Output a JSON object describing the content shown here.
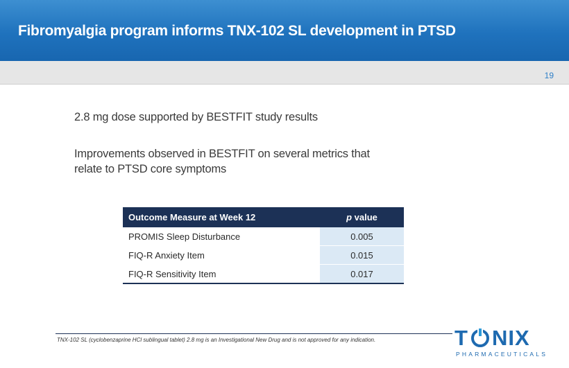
{
  "header": {
    "title": "Fibromyalgia program informs TNX-102 SL development in PTSD"
  },
  "page_number": "19",
  "bullets": [
    {
      "text": "2.8 mg dose supported by BESTFIT study results"
    },
    {
      "line1": "Improvements observed in BESTFIT on several metrics that",
      "line2": "relate to PTSD core symptoms"
    }
  ],
  "table": {
    "header_measure": "Outcome Measure at Week 12",
    "header_p": "p",
    "header_value": " value",
    "rows": [
      {
        "measure": "PROMIS Sleep Disturbance",
        "value": "0.005"
      },
      {
        "measure": "FIQ-R Anxiety Item",
        "value": "0.015"
      },
      {
        "measure": "FIQ-R Sensitivity Item",
        "value": "0.017"
      }
    ]
  },
  "footnote": "TNX-102 SL (cyclobenzaprine HCl sublingual tablet) 2.8 mg is an Investigational New Drug and is not approved for any indication.",
  "logo": {
    "t": "T",
    "n": "N",
    "i": "I",
    "x": "X",
    "sub": "PHARMACEUTICALS",
    "accent": "#2e9ad8"
  },
  "colors": {
    "header": "#1f72bd",
    "table_header": "#1c3156",
    "value_cell": "#dbe9f5"
  }
}
